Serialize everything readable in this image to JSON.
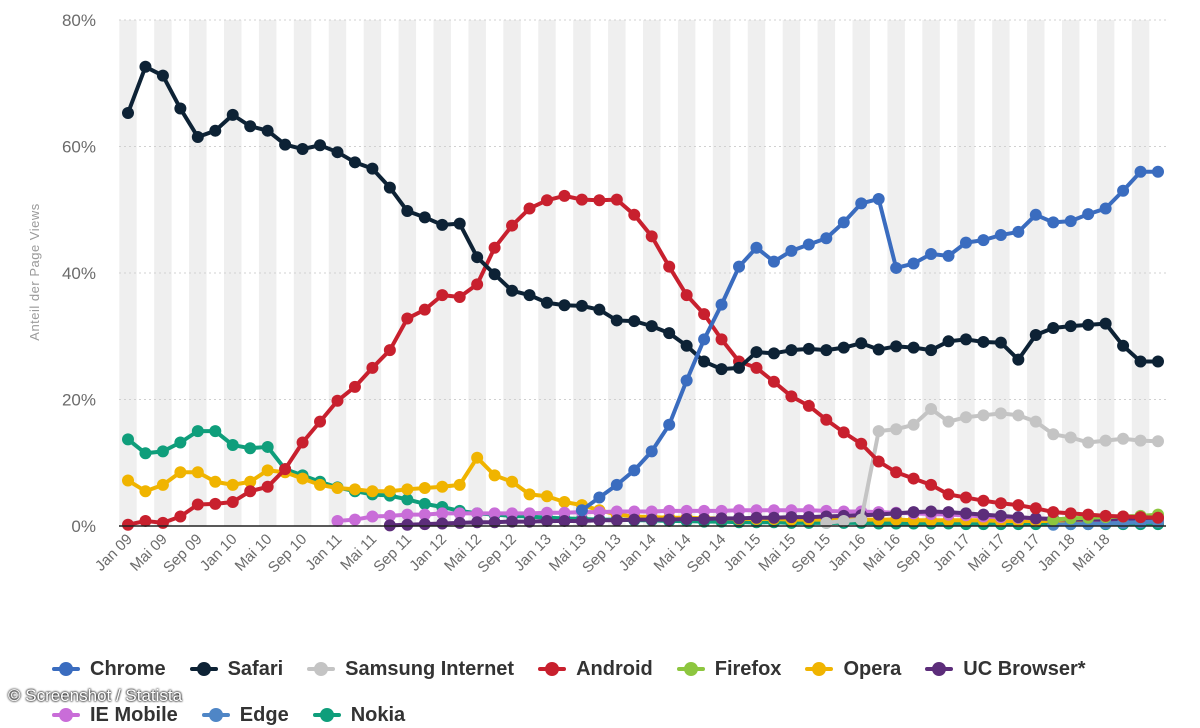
{
  "chart_data": {
    "type": "line",
    "title": "",
    "xlabel": "",
    "ylabel": "Anteil der Page Views",
    "ylim": [
      0,
      80
    ],
    "yticks": [
      "0%",
      "20%",
      "40%",
      "60%",
      "80%"
    ],
    "ytick_values": [
      0,
      20,
      40,
      60,
      80
    ],
    "n_points": 60,
    "xtick_labels": [
      {
        "i": 0,
        "label": "Jan 09"
      },
      {
        "i": 2,
        "label": "Mai 09"
      },
      {
        "i": 4,
        "label": "Sep 09"
      },
      {
        "i": 6,
        "label": "Jan 10"
      },
      {
        "i": 8,
        "label": "Mai 10"
      },
      {
        "i": 10,
        "label": "Sep 10"
      },
      {
        "i": 12,
        "label": "Jan 11"
      },
      {
        "i": 14,
        "label": "Mai 11"
      },
      {
        "i": 16,
        "label": "Sep 11"
      },
      {
        "i": 18,
        "label": "Jan 12"
      },
      {
        "i": 20,
        "label": "Mai 12"
      },
      {
        "i": 22,
        "label": "Sep 12"
      },
      {
        "i": 24,
        "label": "Jan 13"
      },
      {
        "i": 26,
        "label": "Mai 13"
      },
      {
        "i": 28,
        "label": "Sep 13"
      },
      {
        "i": 30,
        "label": "Jan 14"
      },
      {
        "i": 32,
        "label": "Mai 14"
      },
      {
        "i": 34,
        "label": "Sep 14"
      },
      {
        "i": 36,
        "label": "Jan 15"
      },
      {
        "i": 38,
        "label": "Mai 15"
      },
      {
        "i": 40,
        "label": "Sep 15"
      },
      {
        "i": 42,
        "label": "Jan 16"
      },
      {
        "i": 44,
        "label": "Mai 16"
      },
      {
        "i": 46,
        "label": "Sep 16"
      },
      {
        "i": 48,
        "label": "Jan 17"
      },
      {
        "i": 50,
        "label": "Mai 17"
      },
      {
        "i": 52,
        "label": "Sep 17"
      },
      {
        "i": 54,
        "label": "Jan 18"
      },
      {
        "i": 56,
        "label": "Mai 18"
      }
    ],
    "series": [
      {
        "name": "Nokia",
        "color": "#0f9e7b",
        "start": 0,
        "values": [
          13.7,
          11.5,
          11.8,
          13.2,
          15.0,
          15.0,
          12.8,
          12.3,
          12.5,
          9.0,
          8.0,
          7.0,
          6.1,
          5.5,
          5.0,
          4.8,
          4.2,
          3.5,
          3.0,
          2.4,
          2.0,
          1.8,
          1.6,
          1.5,
          1.3,
          1.2,
          1.1,
          1.0,
          1.0,
          0.9,
          0.9,
          0.8,
          0.8,
          0.7,
          0.7,
          0.6,
          0.6,
          0.6,
          0.5,
          0.5,
          0.5,
          0.5,
          0.5,
          0.4,
          0.4,
          0.4,
          0.4,
          0.4,
          0.3,
          0.3,
          0.3,
          0.3,
          0.3,
          0.3,
          0.3,
          0.3,
          0.3,
          0.3,
          0.3,
          0.3
        ]
      },
      {
        "name": "Opera",
        "color": "#f0b400",
        "start": 0,
        "values": [
          7.2,
          5.5,
          6.5,
          8.5,
          8.5,
          7.0,
          6.5,
          7.0,
          8.8,
          8.5,
          7.5,
          6.5,
          6.0,
          5.8,
          5.5,
          5.5,
          5.8,
          6.0,
          6.2,
          6.5,
          10.8,
          8.0,
          7.0,
          5.0,
          4.7,
          3.8,
          3.3,
          2.5,
          1.8,
          1.5,
          1.4,
          1.3,
          1.3,
          1.2,
          1.2,
          1.1,
          1.1,
          1.1,
          1.0,
          1.0,
          1.0,
          1.0,
          1.0,
          1.0,
          1.0,
          0.9,
          0.9,
          0.9,
          0.9,
          0.9,
          0.8,
          0.8,
          0.8,
          0.8,
          0.8,
          0.8,
          0.8,
          0.8,
          0.8,
          0.8
        ]
      },
      {
        "name": "IE Mobile",
        "color": "#c96dd8",
        "start": 12,
        "values": [
          0.8,
          1.0,
          1.5,
          1.6,
          1.8,
          1.8,
          2.0,
          2.0,
          2.0,
          2.0,
          2.0,
          2.0,
          2.1,
          2.1,
          2.2,
          2.2,
          2.3,
          2.3,
          2.3,
          2.4,
          2.4,
          2.4,
          2.4,
          2.5,
          2.5,
          2.5,
          2.5,
          2.5,
          2.4,
          2.3,
          2.3,
          2.2,
          2.1,
          2.0,
          1.9,
          1.8,
          1.7,
          1.5,
          1.4,
          1.3,
          1.2,
          1.1,
          1.0,
          1.0,
          0.9,
          0.8,
          0.8,
          0.7
        ]
      },
      {
        "name": "UC Browser*",
        "color": "#5c2d7a",
        "start": 15,
        "values": [
          0.1,
          0.2,
          0.3,
          0.4,
          0.5,
          0.6,
          0.6,
          0.7,
          0.7,
          0.8,
          0.8,
          0.8,
          0.9,
          0.9,
          1.0,
          1.0,
          1.0,
          1.1,
          1.1,
          1.2,
          1.2,
          1.3,
          1.3,
          1.4,
          1.4,
          1.5,
          1.6,
          1.7,
          1.8,
          2.0,
          2.2,
          2.3,
          2.2,
          2.0,
          1.8,
          1.6,
          1.4,
          1.2,
          1.1,
          1.0,
          1.0,
          1.0,
          1.1,
          1.2,
          1.3
        ]
      },
      {
        "name": "Edge",
        "color": "#4f86c6",
        "start": 53,
        "values": [
          0.2,
          0.3,
          0.3,
          0.4,
          0.5,
          0.6,
          0.7
        ]
      },
      {
        "name": "Firefox",
        "color": "#8dc63f",
        "start": 53,
        "values": [
          1.0,
          1.2,
          1.3,
          1.4,
          1.5,
          1.6,
          1.8
        ]
      },
      {
        "name": "Samsung Internet",
        "color": "#c4c4c4",
        "start": 40,
        "values": [
          0.5,
          0.8,
          1.0,
          15.0,
          15.3,
          16.0,
          18.5,
          16.5,
          17.2,
          17.5,
          17.8,
          17.5,
          16.5,
          14.5,
          14.0,
          13.2,
          13.5,
          13.8,
          13.5,
          13.4
        ]
      },
      {
        "name": "Android",
        "color": "#c8202e",
        "start": 0,
        "values": [
          0.2,
          0.8,
          0.5,
          1.5,
          3.4,
          3.5,
          3.8,
          5.5,
          6.2,
          9.0,
          13.2,
          16.5,
          19.8,
          22.0,
          25.0,
          27.8,
          32.8,
          34.2,
          36.5,
          36.2,
          38.2,
          44.0,
          47.5,
          50.2,
          51.5,
          52.2,
          51.6,
          51.5,
          51.6,
          49.2,
          45.8,
          41.0,
          36.5,
          33.5,
          29.5,
          26.0,
          25.0,
          22.8,
          20.5,
          19.0,
          16.8,
          14.8,
          13.0,
          10.2,
          8.5,
          7.5,
          6.5,
          5.0,
          4.5,
          4.0,
          3.6,
          3.3,
          2.8,
          2.2,
          2.0,
          1.8,
          1.6,
          1.5,
          1.4,
          1.3
        ]
      },
      {
        "name": "Safari",
        "color": "#0d2235",
        "start": 0,
        "values": [
          65.3,
          72.6,
          71.2,
          66.0,
          61.5,
          62.5,
          65.0,
          63.2,
          62.5,
          60.3,
          59.6,
          60.2,
          59.1,
          57.5,
          56.5,
          53.5,
          49.8,
          48.8,
          47.6,
          47.8,
          42.5,
          39.8,
          37.2,
          36.5,
          35.3,
          34.9,
          34.8,
          34.2,
          32.5,
          32.4,
          31.6,
          30.5,
          28.5,
          26.0,
          24.8,
          25.0,
          27.5,
          27.3,
          27.8,
          28.0,
          27.8,
          28.2,
          28.9,
          27.9,
          28.4,
          28.2,
          27.8,
          29.2,
          29.5,
          29.1,
          29.0,
          26.3,
          30.2,
          31.3,
          31.6,
          31.8,
          32.0,
          28.5,
          26.0,
          26.0
        ]
      },
      {
        "name": "Chrome",
        "color": "#3a6cbf",
        "start": 26,
        "values": [
          2.5,
          4.5,
          6.5,
          8.8,
          11.8,
          16.0,
          23.0,
          29.5,
          35.0,
          41.0,
          44.0,
          41.8,
          43.5,
          44.5,
          45.5,
          48.0,
          51.0,
          51.7,
          40.8,
          41.5,
          43.0,
          42.7,
          44.8,
          45.2,
          46.0,
          46.5,
          49.2,
          48.0,
          48.2,
          49.3,
          50.2,
          53.0,
          56.0,
          56.0
        ]
      }
    ]
  },
  "legend": {
    "row1": [
      "Chrome",
      "Safari",
      "Samsung Internet",
      "Android",
      "Firefox",
      "Opera",
      "UC Browser*"
    ],
    "row2": [
      "IE Mobile",
      "Edge",
      "Nokia"
    ],
    "colors": {
      "Chrome": "#3a6cbf",
      "Safari": "#0d2235",
      "Samsung Internet": "#c4c4c4",
      "Android": "#c8202e",
      "Firefox": "#8dc63f",
      "Opera": "#f0b400",
      "UC Browser*": "#5c2d7a",
      "IE Mobile": "#c96dd8",
      "Edge": "#4f86c6",
      "Nokia": "#0f9e7b"
    }
  },
  "credit": "© Screenshot / Statista"
}
